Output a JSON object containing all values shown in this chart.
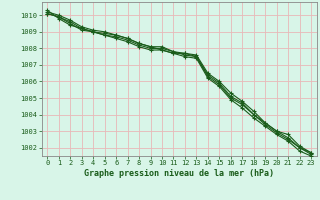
{
  "title": "Graphe pression niveau de la mer (hPa)",
  "background_color": "#d8f5e8",
  "plot_bg_color": "#d8f5e8",
  "grid_color": "#e8b8b8",
  "line_color": "#1a5c1a",
  "spine_color": "#888888",
  "tick_color": "#1a5c1a",
  "xlim": [
    -0.5,
    23.5
  ],
  "ylim": [
    1001.5,
    1010.8
  ],
  "yticks": [
    1002,
    1003,
    1004,
    1005,
    1006,
    1007,
    1008,
    1009,
    1010
  ],
  "xticks": [
    0,
    1,
    2,
    3,
    4,
    5,
    6,
    7,
    8,
    9,
    10,
    11,
    12,
    13,
    14,
    15,
    16,
    17,
    18,
    19,
    20,
    21,
    22,
    23
  ],
  "series": [
    [
      1010.2,
      1010.0,
      1009.7,
      1009.3,
      1009.1,
      1009.0,
      1008.8,
      1008.6,
      1008.3,
      1008.1,
      1007.9,
      1007.7,
      1007.7,
      1007.6,
      1006.5,
      1006.0,
      1005.3,
      1004.8,
      1004.2,
      1003.5,
      1003.0,
      1002.8,
      1002.1,
      1001.7
    ],
    [
      1010.1,
      1009.9,
      1009.5,
      1009.1,
      1009.0,
      1008.8,
      1008.7,
      1008.5,
      1008.2,
      1008.0,
      1008.0,
      1007.8,
      1007.6,
      1007.5,
      1006.3,
      1005.8,
      1005.0,
      1004.6,
      1004.0,
      1003.4,
      1002.9,
      1002.5,
      1002.0,
      1001.6
    ],
    [
      1010.3,
      1009.8,
      1009.4,
      1009.2,
      1009.0,
      1008.9,
      1008.8,
      1008.6,
      1008.3,
      1008.1,
      1008.1,
      1007.8,
      1007.7,
      1007.5,
      1006.4,
      1005.9,
      1005.1,
      1004.7,
      1004.0,
      1003.5,
      1003.0,
      1002.6,
      1002.0,
      1001.7
    ],
    [
      1010.1,
      1009.9,
      1009.6,
      1009.2,
      1009.0,
      1008.8,
      1008.6,
      1008.4,
      1008.1,
      1007.9,
      1007.9,
      1007.7,
      1007.5,
      1007.4,
      1006.2,
      1005.7,
      1004.9,
      1004.4,
      1003.8,
      1003.3,
      1002.8,
      1002.4,
      1001.8,
      1001.5
    ]
  ]
}
